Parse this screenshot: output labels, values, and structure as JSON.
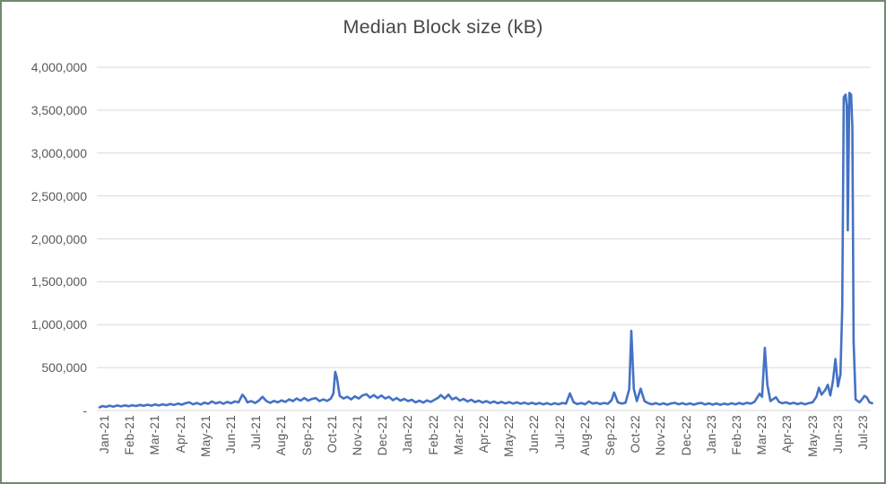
{
  "chart": {
    "title": "Median Block size (kB)"
  },
  "colors": {
    "line": "#4472C4",
    "grid": "#D9D9D9",
    "axis_line": "#D9D9D9",
    "tick_label": "#595959",
    "title": "#474747",
    "frame_border": "#6E8A70",
    "background": "#FFFFFF"
  },
  "chart_data": {
    "type": "line",
    "title": "Median Block size (kB)",
    "xlabel": "",
    "ylabel": "",
    "legend": "none",
    "grid": "horizontal",
    "ylim": [
      0,
      4000000
    ],
    "y_tick_values": [
      0,
      500000,
      1000000,
      1500000,
      2000000,
      2500000,
      3000000,
      3500000,
      4000000
    ],
    "y_tick_labels": [
      "-",
      "500,000",
      "1,000,000",
      "1,500,000",
      "2,000,000",
      "2,500,000",
      "3,000,000",
      "3,500,000",
      "4,000,000"
    ],
    "x_tick_labels": [
      "Jan-21",
      "Feb-21",
      "Mar-21",
      "Apr-21",
      "May-21",
      "Jun-21",
      "Jul-21",
      "Aug-21",
      "Sep-21",
      "Oct-21",
      "Nov-21",
      "Dec-21",
      "Jan-22",
      "Feb-22",
      "Mar-22",
      "Apr-22",
      "May-22",
      "Jun-22",
      "Jul-22",
      "Aug-22",
      "Sep-22",
      "Oct-22",
      "Nov-22",
      "Dec-22",
      "Jan-23",
      "Feb-23",
      "Mar-23",
      "Apr-23",
      "May-23",
      "Jun-23",
      "Jul-23"
    ],
    "x_unit": "months_since_jan_2021",
    "series": [
      {
        "name": "Median Block size (kB)",
        "color": "#4472C4",
        "points": [
          [
            -0.25,
            38000
          ],
          [
            -0.12,
            52000
          ],
          [
            0,
            42000
          ],
          [
            0.15,
            56000
          ],
          [
            0.3,
            45000
          ],
          [
            0.45,
            58000
          ],
          [
            0.6,
            48000
          ],
          [
            0.75,
            60000
          ],
          [
            0.9,
            50000
          ],
          [
            1.05,
            62000
          ],
          [
            1.2,
            52000
          ],
          [
            1.35,
            65000
          ],
          [
            1.5,
            55000
          ],
          [
            1.65,
            68000
          ],
          [
            1.8,
            56000
          ],
          [
            1.95,
            70000
          ],
          [
            2.1,
            58000
          ],
          [
            2.25,
            72000
          ],
          [
            2.4,
            62000
          ],
          [
            2.55,
            76000
          ],
          [
            2.7,
            65000
          ],
          [
            2.85,
            80000
          ],
          [
            3,
            68000
          ],
          [
            3.15,
            85000
          ],
          [
            3.3,
            95000
          ],
          [
            3.45,
            72000
          ],
          [
            3.6,
            88000
          ],
          [
            3.75,
            70000
          ],
          [
            3.9,
            92000
          ],
          [
            4.05,
            78000
          ],
          [
            4.2,
            105000
          ],
          [
            4.35,
            82000
          ],
          [
            4.5,
            98000
          ],
          [
            4.65,
            78000
          ],
          [
            4.8,
            100000
          ],
          [
            4.95,
            85000
          ],
          [
            5.1,
            105000
          ],
          [
            5.25,
            95000
          ],
          [
            5.4,
            185000
          ],
          [
            5.5,
            150000
          ],
          [
            5.6,
            95000
          ],
          [
            5.75,
            110000
          ],
          [
            5.9,
            88000
          ],
          [
            6.05,
            115000
          ],
          [
            6.2,
            160000
          ],
          [
            6.35,
            110000
          ],
          [
            6.5,
            90000
          ],
          [
            6.65,
            112000
          ],
          [
            6.8,
            95000
          ],
          [
            6.95,
            118000
          ],
          [
            7.1,
            100000
          ],
          [
            7.25,
            130000
          ],
          [
            7.4,
            110000
          ],
          [
            7.55,
            140000
          ],
          [
            7.7,
            115000
          ],
          [
            7.85,
            145000
          ],
          [
            8,
            115000
          ],
          [
            8.15,
            135000
          ],
          [
            8.3,
            145000
          ],
          [
            8.45,
            110000
          ],
          [
            8.6,
            130000
          ],
          [
            8.75,
            112000
          ],
          [
            8.9,
            140000
          ],
          [
            9,
            200000
          ],
          [
            9.07,
            450000
          ],
          [
            9.14,
            380000
          ],
          [
            9.25,
            170000
          ],
          [
            9.4,
            140000
          ],
          [
            9.55,
            160000
          ],
          [
            9.7,
            130000
          ],
          [
            9.85,
            165000
          ],
          [
            10,
            140000
          ],
          [
            10.15,
            175000
          ],
          [
            10.3,
            190000
          ],
          [
            10.45,
            150000
          ],
          [
            10.6,
            180000
          ],
          [
            10.75,
            145000
          ],
          [
            10.9,
            175000
          ],
          [
            11.05,
            140000
          ],
          [
            11.2,
            160000
          ],
          [
            11.35,
            120000
          ],
          [
            11.5,
            145000
          ],
          [
            11.65,
            115000
          ],
          [
            11.8,
            135000
          ],
          [
            11.95,
            110000
          ],
          [
            12.1,
            125000
          ],
          [
            12.25,
            95000
          ],
          [
            12.4,
            115000
          ],
          [
            12.55,
            92000
          ],
          [
            12.7,
            118000
          ],
          [
            12.85,
            100000
          ],
          [
            13,
            125000
          ],
          [
            13.15,
            150000
          ],
          [
            13.25,
            180000
          ],
          [
            13.4,
            140000
          ],
          [
            13.55,
            185000
          ],
          [
            13.7,
            130000
          ],
          [
            13.85,
            150000
          ],
          [
            14,
            115000
          ],
          [
            14.15,
            135000
          ],
          [
            14.3,
            105000
          ],
          [
            14.45,
            125000
          ],
          [
            14.6,
            98000
          ],
          [
            14.75,
            115000
          ],
          [
            14.9,
            92000
          ],
          [
            15.05,
            110000
          ],
          [
            15.2,
            88000
          ],
          [
            15.35,
            105000
          ],
          [
            15.5,
            85000
          ],
          [
            15.65,
            100000
          ],
          [
            15.8,
            82000
          ],
          [
            15.95,
            98000
          ],
          [
            16.1,
            80000
          ],
          [
            16.25,
            95000
          ],
          [
            16.4,
            78000
          ],
          [
            16.55,
            92000
          ],
          [
            16.7,
            76000
          ],
          [
            16.85,
            90000
          ],
          [
            17,
            74000
          ],
          [
            17.15,
            88000
          ],
          [
            17.3,
            72000
          ],
          [
            17.45,
            86000
          ],
          [
            17.6,
            70000
          ],
          [
            17.75,
            85000
          ],
          [
            17.9,
            72000
          ],
          [
            18.05,
            88000
          ],
          [
            18.2,
            80000
          ],
          [
            18.35,
            200000
          ],
          [
            18.5,
            95000
          ],
          [
            18.65,
            75000
          ],
          [
            18.8,
            88000
          ],
          [
            18.95,
            72000
          ],
          [
            19.1,
            105000
          ],
          [
            19.25,
            80000
          ],
          [
            19.4,
            90000
          ],
          [
            19.55,
            75000
          ],
          [
            19.7,
            88000
          ],
          [
            19.85,
            78000
          ],
          [
            20,
            120000
          ],
          [
            20.1,
            210000
          ],
          [
            20.25,
            95000
          ],
          [
            20.4,
            80000
          ],
          [
            20.55,
            90000
          ],
          [
            20.7,
            250000
          ],
          [
            20.78,
            930000
          ],
          [
            20.88,
            250000
          ],
          [
            21,
            110000
          ],
          [
            21.15,
            255000
          ],
          [
            21.3,
            110000
          ],
          [
            21.45,
            85000
          ],
          [
            21.6,
            72000
          ],
          [
            21.75,
            86000
          ],
          [
            21.9,
            70000
          ],
          [
            22.05,
            84000
          ],
          [
            22.2,
            68000
          ],
          [
            22.35,
            82000
          ],
          [
            22.5,
            90000
          ],
          [
            22.65,
            72000
          ],
          [
            22.8,
            86000
          ],
          [
            22.95,
            70000
          ],
          [
            23.1,
            84000
          ],
          [
            23.25,
            68000
          ],
          [
            23.4,
            82000
          ],
          [
            23.55,
            88000
          ],
          [
            23.7,
            70000
          ],
          [
            23.85,
            84000
          ],
          [
            24,
            68000
          ],
          [
            24.15,
            82000
          ],
          [
            24.3,
            66000
          ],
          [
            24.45,
            80000
          ],
          [
            24.6,
            70000
          ],
          [
            24.75,
            85000
          ],
          [
            24.9,
            72000
          ],
          [
            25.05,
            88000
          ],
          [
            25.2,
            74000
          ],
          [
            25.35,
            90000
          ],
          [
            25.5,
            80000
          ],
          [
            25.65,
            100000
          ],
          [
            25.85,
            195000
          ],
          [
            25.95,
            160000
          ],
          [
            26.06,
            730000
          ],
          [
            26.16,
            300000
          ],
          [
            26.28,
            110000
          ],
          [
            26.4,
            135000
          ],
          [
            26.5,
            155000
          ],
          [
            26.62,
            100000
          ],
          [
            26.75,
            85000
          ],
          [
            26.9,
            95000
          ],
          [
            27.05,
            78000
          ],
          [
            27.2,
            90000
          ],
          [
            27.35,
            74000
          ],
          [
            27.5,
            88000
          ],
          [
            27.65,
            72000
          ],
          [
            27.8,
            86000
          ],
          [
            27.95,
            95000
          ],
          [
            28.1,
            160000
          ],
          [
            28.2,
            265000
          ],
          [
            28.3,
            185000
          ],
          [
            28.45,
            240000
          ],
          [
            28.55,
            300000
          ],
          [
            28.65,
            175000
          ],
          [
            28.75,
            340000
          ],
          [
            28.85,
            600000
          ],
          [
            28.95,
            280000
          ],
          [
            29.05,
            420000
          ],
          [
            29.12,
            1200000
          ],
          [
            29.18,
            3650000
          ],
          [
            29.25,
            3680000
          ],
          [
            29.3,
            3550000
          ],
          [
            29.34,
            2100000
          ],
          [
            29.4,
            3700000
          ],
          [
            29.47,
            3680000
          ],
          [
            29.52,
            3300000
          ],
          [
            29.57,
            800000
          ],
          [
            29.65,
            130000
          ],
          [
            29.8,
            95000
          ],
          [
            29.9,
            130000
          ],
          [
            30,
            170000
          ],
          [
            30.1,
            150000
          ],
          [
            30.2,
            95000
          ],
          [
            30.3,
            85000
          ]
        ]
      }
    ]
  }
}
